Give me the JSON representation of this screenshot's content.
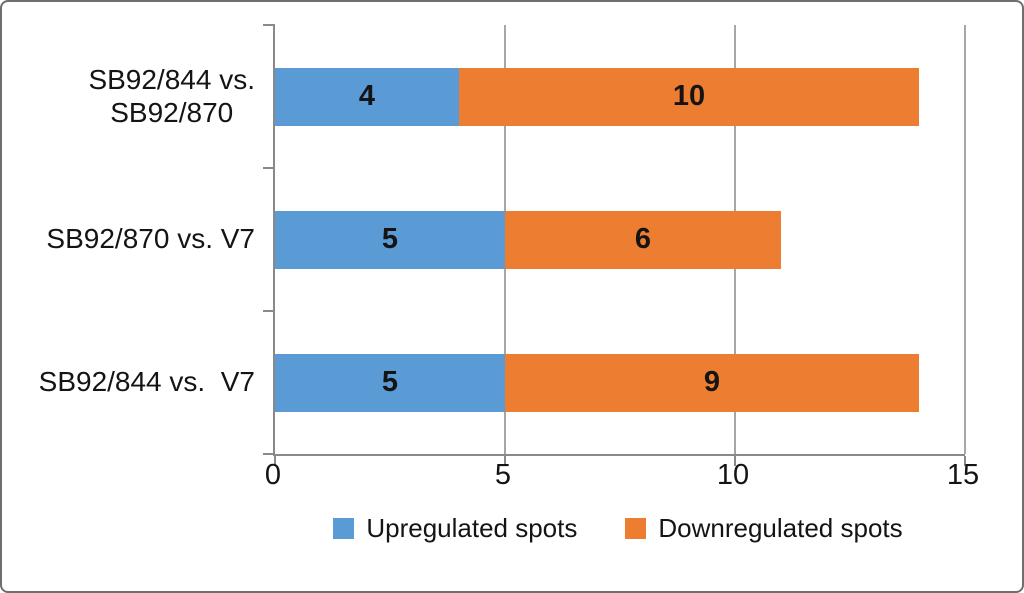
{
  "chart_data": {
    "type": "bar",
    "orientation": "horizontal",
    "stacked": true,
    "title": "",
    "categories": [
      "SB92/844 vs.\nSB92/870",
      "SB92/870 vs. V7",
      "SB92/844 vs.  V7"
    ],
    "series": [
      {
        "name": "Upregulated spots",
        "color": "#5B9BD5",
        "values": [
          4,
          5,
          5
        ]
      },
      {
        "name": "Downregulated spots",
        "color": "#ED7D31",
        "values": [
          10,
          6,
          9
        ]
      }
    ],
    "xlim": [
      0,
      15
    ],
    "xticks": [
      0,
      5,
      10,
      15
    ],
    "grid": true,
    "legend_position": "bottom",
    "colors": {
      "gridline": "#a6a6a6",
      "axis": "#898989",
      "text": "#141414",
      "frame_border": "#6e6e6e"
    }
  }
}
